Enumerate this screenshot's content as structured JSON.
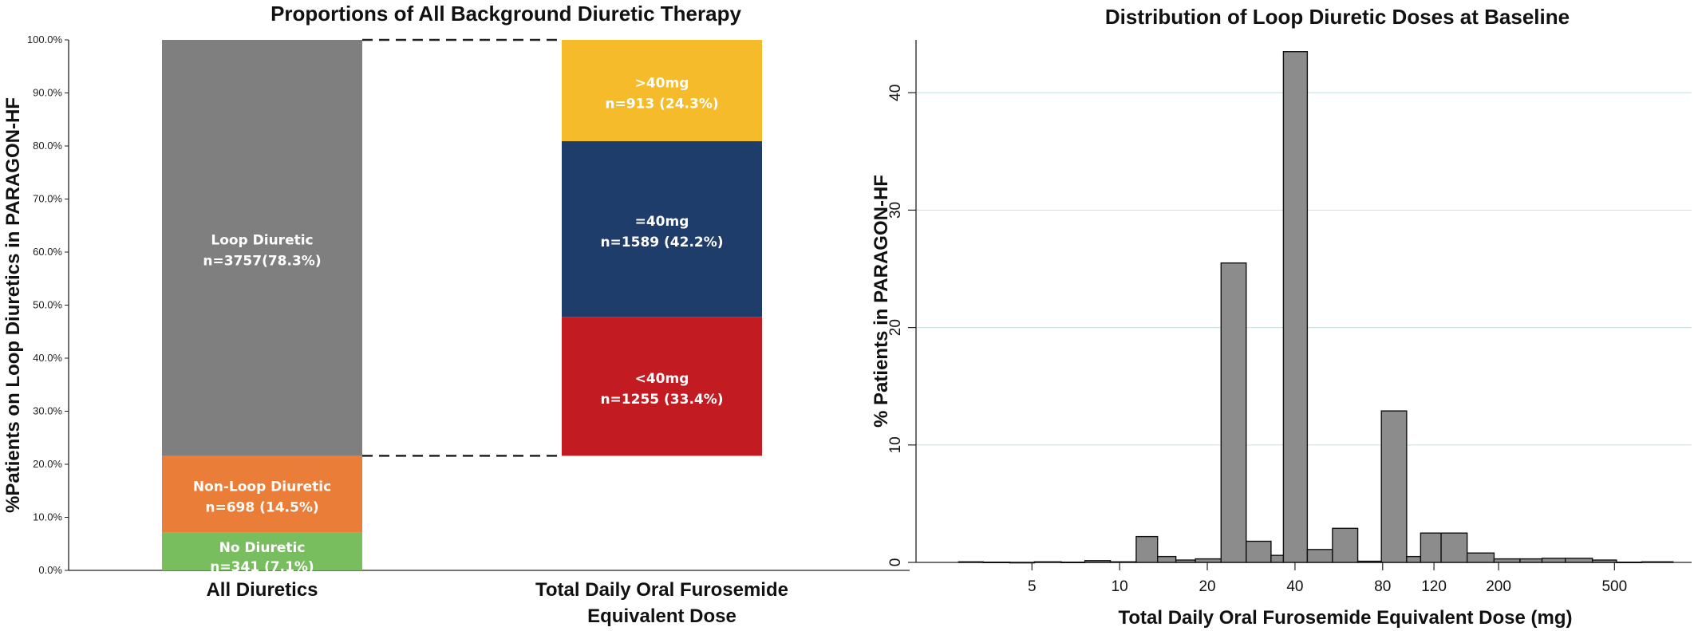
{
  "chart_data": [
    {
      "type": "bar",
      "subtype": "stacked",
      "title": "Proportions of All Background Diuretic Therapy",
      "ylabel": "%Patients on Loop Diuretics in PARAGON-HF",
      "ylim": [
        0,
        100
      ],
      "yticks": [
        "0.0%",
        "10.0%",
        "20.0%",
        "30.0%",
        "40.0%",
        "50.0%",
        "60.0%",
        "70.0%",
        "80.0%",
        "90.0%",
        "100.0%"
      ],
      "categories": [
        {
          "line1": "All Diuretics",
          "line2": ""
        },
        {
          "line1": "Total Daily Oral Furosemide",
          "line2": "Equivalent Dose"
        }
      ],
      "bars": [
        {
          "segments": [
            {
              "line1": "No Diuretic",
              "line2": "n=341 (7.1%)",
              "from": 0,
              "to": 7.1,
              "color": "#78be5e"
            },
            {
              "line1": "Non-Loop Diuretic",
              "line2": "n=698 (14.5%)",
              "from": 7.1,
              "to": 21.6,
              "color": "#ea7d38"
            },
            {
              "line1": "Loop Diuretic",
              "line2": "n=3757(78.3%)",
              "from": 21.6,
              "to": 100,
              "color": "#7f7f80"
            }
          ]
        },
        {
          "segments": [
            {
              "line1": "<40mg",
              "line2": "n=1255 (33.4%)",
              "from": 21.6,
              "to": 47.8,
              "color": "#c21b22"
            },
            {
              "line1": "=40mg",
              "line2": "n=1589 (42.2%)",
              "from": 47.8,
              "to": 80.9,
              "color": "#1f3d6b"
            },
            {
              "line1": ">40mg",
              "line2": "n=913 (24.3%)",
              "from": 80.9,
              "to": 100,
              "color": "#f6bb2a"
            }
          ]
        }
      ],
      "connector_levels": [
        100,
        21.6
      ]
    },
    {
      "type": "histogram",
      "title": "Distribution of Loop Diuretic Doses at Baseline",
      "xlabel": "Total Daily Oral Furosemide Equivalent Dose (mg)",
      "ylabel": "% Patients in PARAGON-HF",
      "xscale": "log",
      "xlim": [
        2.0,
        920
      ],
      "ylim": [
        0,
        44.5
      ],
      "xticks": [
        5,
        10,
        20,
        40,
        80,
        120,
        200,
        500
      ],
      "yticks": [
        0,
        10,
        20,
        30,
        40
      ],
      "grid": "horizontal",
      "bin_edges": [
        2.8,
        3.4,
        4.2,
        5.1,
        6.3,
        7.6,
        9.3,
        11.4,
        13.5,
        15.6,
        18.2,
        22.3,
        27.2,
        33.1,
        36.5,
        44.1,
        53.8,
        65.7,
        79.2,
        96.7,
        108.0,
        127.0,
        156.0,
        193.0,
        237.0,
        282.0,
        339.0,
        420.0,
        508.0,
        620.0,
        794.0
      ],
      "values": [
        0.05,
        0.02,
        0.0,
        0.05,
        0.02,
        0.15,
        0.05,
        2.2,
        0.5,
        0.2,
        0.3,
        25.5,
        1.8,
        0.6,
        43.5,
        1.1,
        2.9,
        0.1,
        12.9,
        0.5,
        2.5,
        2.5,
        0.8,
        0.3,
        0.3,
        0.35,
        0.35,
        0.2,
        0.02,
        0.05
      ],
      "bar_color": "#8c8c8c"
    }
  ]
}
